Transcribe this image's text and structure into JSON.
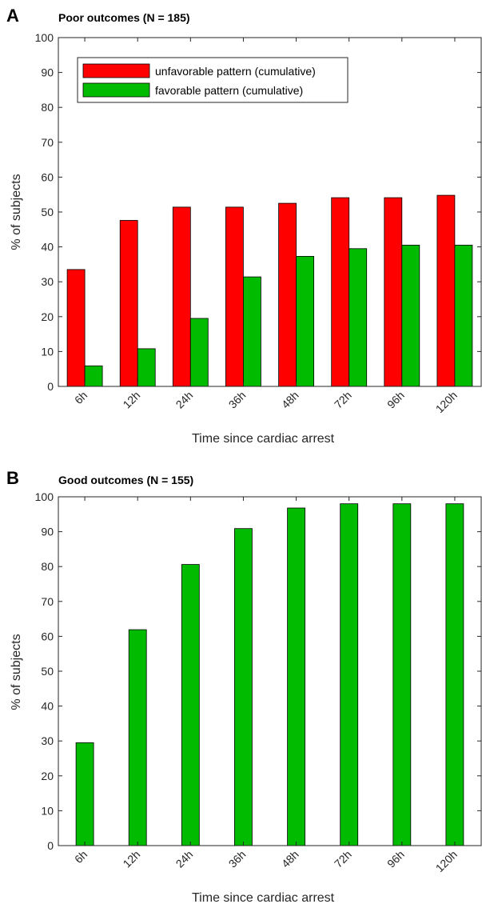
{
  "panels": {
    "a": {
      "letter": "A",
      "title": "Poor outcomes (N = 185)",
      "xlabel": "Time since cardiac arrest",
      "ylabel": "% of subjects"
    },
    "b": {
      "letter": "B",
      "title": "Good outcomes (N = 155)",
      "xlabel": "Time since cardiac arrest",
      "ylabel": "% of subjects"
    }
  },
  "colors": {
    "unfavorable": "#ff0000",
    "favorable": "#00bb00"
  },
  "chart_data": [
    {
      "type": "bar",
      "title": "Poor outcomes (N = 185)",
      "xlabel": "Time since cardiac arrest",
      "ylabel": "% of subjects",
      "ylim": [
        0,
        100
      ],
      "yticks": [
        0,
        10,
        20,
        30,
        40,
        50,
        60,
        70,
        80,
        90,
        100
      ],
      "categories": [
        "6h",
        "12h",
        "24h",
        "36h",
        "48h",
        "72h",
        "96h",
        "120h"
      ],
      "legend_position": "top-left",
      "series": [
        {
          "name": "unfavorable pattern (cumulative)",
          "color": "#ff0000",
          "values": [
            33.5,
            47.6,
            51.4,
            51.4,
            52.5,
            54.1,
            54.1,
            54.8
          ]
        },
        {
          "name": "favorable pattern (cumulative)",
          "color": "#00bb00",
          "values": [
            5.9,
            10.8,
            19.5,
            31.4,
            37.3,
            39.5,
            40.5,
            40.5
          ]
        }
      ]
    },
    {
      "type": "bar",
      "title": "Good outcomes (N = 155)",
      "xlabel": "Time since cardiac arrest",
      "ylabel": "% of subjects",
      "ylim": [
        0,
        100
      ],
      "yticks": [
        0,
        10,
        20,
        30,
        40,
        50,
        60,
        70,
        80,
        90,
        100
      ],
      "categories": [
        "6h",
        "12h",
        "24h",
        "36h",
        "48h",
        "72h",
        "96h",
        "120h"
      ],
      "series": [
        {
          "color": "#00bb00",
          "values": [
            29.5,
            61.9,
            80.6,
            90.9,
            96.8,
            98.0,
            98.0,
            98.0
          ]
        }
      ]
    }
  ]
}
